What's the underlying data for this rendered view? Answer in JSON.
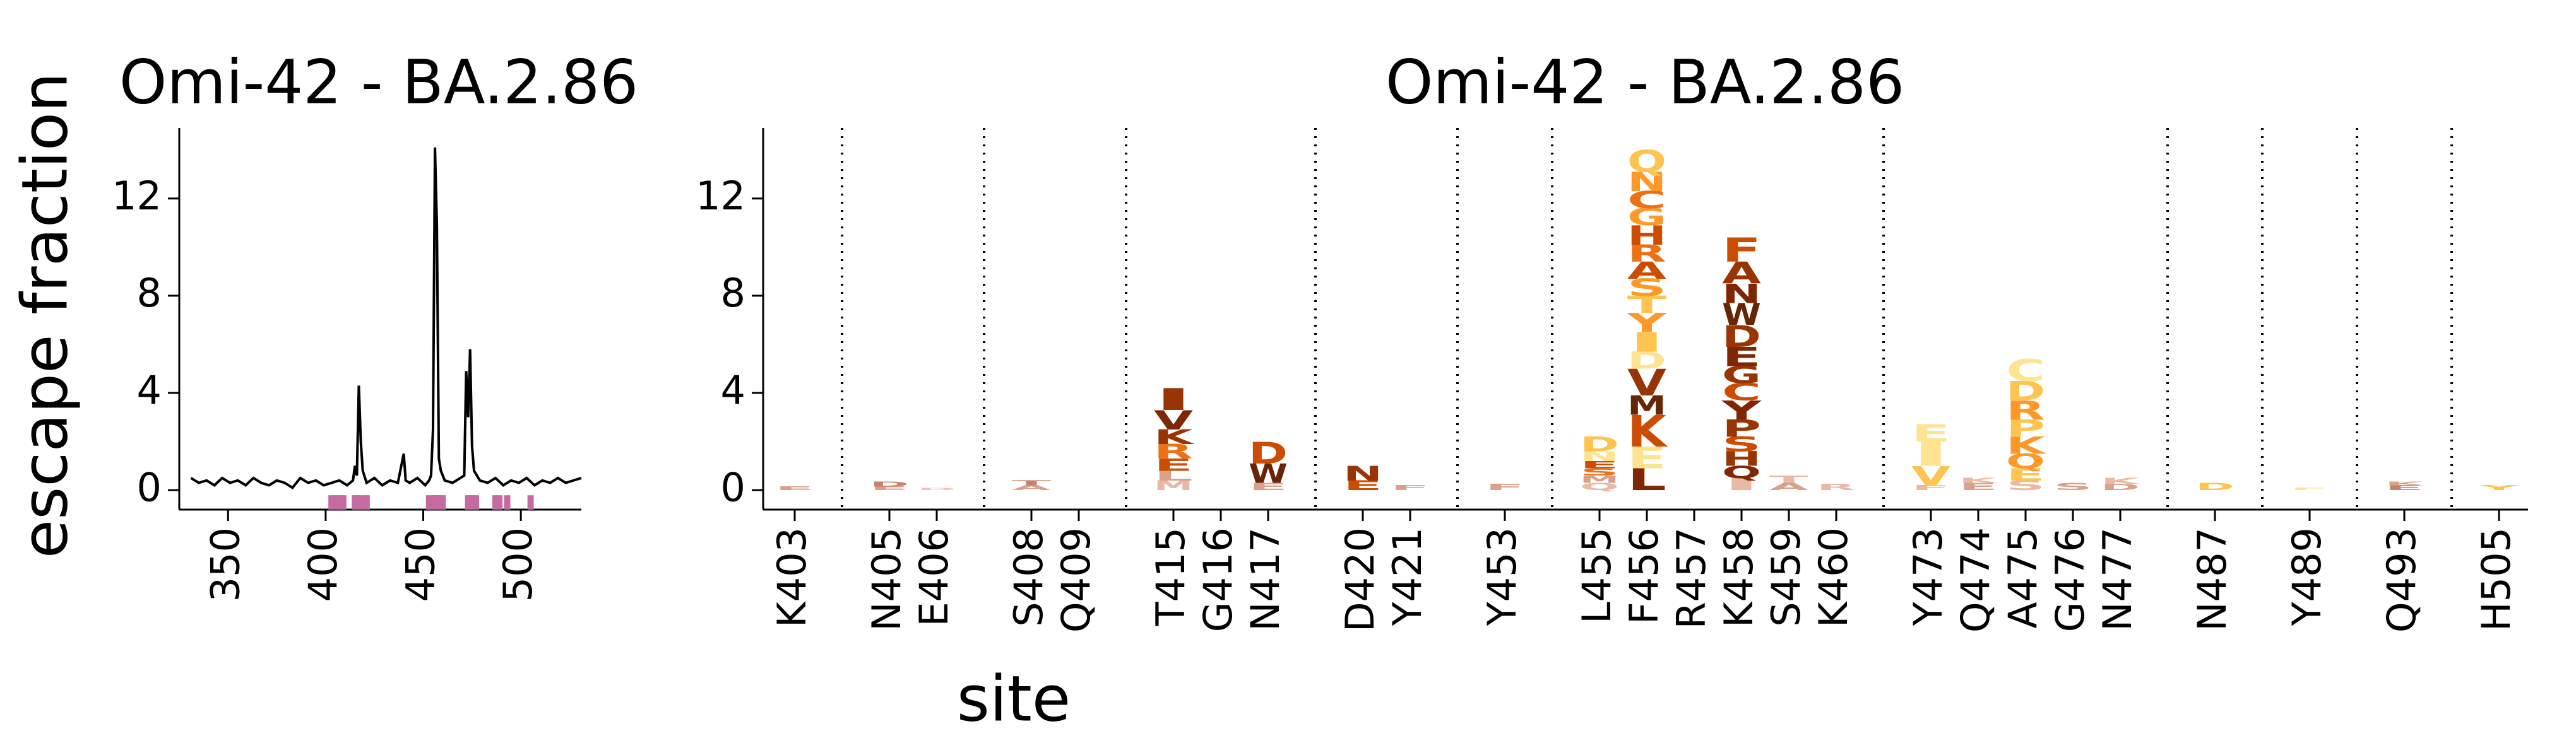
{
  "chart_data": [
    {
      "type": "line",
      "title": "Omi-42 - BA.2.86",
      "ylabel": "escape fraction",
      "xlim": [
        325,
        531
      ],
      "ylim": [
        -0.8,
        14.9
      ],
      "xticks": [
        350,
        400,
        450,
        500
      ],
      "yticks": [
        0,
        4,
        8,
        12
      ],
      "x": [
        331,
        335,
        339,
        343,
        347,
        351,
        355,
        359,
        363,
        367,
        371,
        375,
        379,
        383,
        387,
        391,
        395,
        399,
        403,
        407,
        411,
        414,
        415,
        416,
        417,
        418,
        419,
        421,
        425,
        429,
        433,
        437,
        440,
        441,
        443,
        447,
        451,
        453,
        454,
        455,
        456,
        457,
        458,
        459,
        461,
        465,
        469,
        471,
        472,
        473,
        474,
        475,
        476,
        479,
        483,
        487,
        491,
        495,
        499,
        503,
        507,
        511,
        515,
        519,
        523,
        527,
        531
      ],
      "series": [
        {
          "color": "#000000",
          "values": [
            0.5,
            0.3,
            0.4,
            0.2,
            0.5,
            0.3,
            0.4,
            0.2,
            0.5,
            0.3,
            0.2,
            0.4,
            0.3,
            0.1,
            0.5,
            0.3,
            0.4,
            0.2,
            0.3,
            0.4,
            0.2,
            0.4,
            1.0,
            0.6,
            4.3,
            2.0,
            0.8,
            0.3,
            0.5,
            0.2,
            0.4,
            0.3,
            1.5,
            0.4,
            0.3,
            0.5,
            0.2,
            0.4,
            0.6,
            2.5,
            14.1,
            10.8,
            1.3,
            0.8,
            0.4,
            0.3,
            0.5,
            0.6,
            4.9,
            3.0,
            5.8,
            1.8,
            0.8,
            0.4,
            0.3,
            0.5,
            0.2,
            0.4,
            0.3,
            0.5,
            0.2,
            0.4,
            0.3,
            0.5,
            0.3,
            0.4,
            0.5
          ]
        }
      ],
      "highlight_color": "#c46ba1",
      "highlight_sites": [
        403,
        405,
        406,
        408,
        409,
        415,
        416,
        417,
        420,
        421,
        453,
        455,
        456,
        457,
        458,
        459,
        460,
        473,
        474,
        475,
        476,
        477,
        487,
        489,
        493,
        505
      ]
    },
    {
      "type": "logo",
      "title": "Omi-42 - BA.2.86",
      "xlabel": "site",
      "ylim": [
        -0.8,
        14.9
      ],
      "yticks": [
        0,
        4,
        8,
        12
      ],
      "groups": [
        [
          {
            "label": "K403",
            "letters": [
              {
                "letter": "E",
                "value": 0.15,
                "color": "#d9a08a"
              }
            ]
          }
        ],
        [
          {
            "label": "N405",
            "letters": [
              {
                "letter": "E",
                "value": 0.15,
                "color": "#d9a08a"
              },
              {
                "letter": "D",
                "value": 0.2,
                "color": "#c9826a"
              }
            ]
          },
          {
            "label": "E406",
            "letters": [
              {
                "letter": "D",
                "value": 0.08,
                "color": "#e8c4b4"
              }
            ]
          }
        ],
        [
          {
            "label": "S408",
            "letters": [
              {
                "letter": "A",
                "value": 0.2,
                "color": "#d9a08a"
              },
              {
                "letter": "T",
                "value": 0.2,
                "color": "#c9826a"
              }
            ]
          },
          {
            "label": "Q409",
            "letters": []
          }
        ],
        [
          {
            "label": "T415",
            "letters": [
              {
                "letter": "M",
                "value": 0.4,
                "color": "#e9b9a6"
              },
              {
                "letter": "L",
                "value": 0.4,
                "color": "#d9a08a"
              },
              {
                "letter": "E",
                "value": 0.5,
                "color": "#cc4c02"
              },
              {
                "letter": "R",
                "value": 0.6,
                "color": "#ec7014"
              },
              {
                "letter": "K",
                "value": 0.6,
                "color": "#993404"
              },
              {
                "letter": "V",
                "value": 0.8,
                "color": "#7f2704"
              },
              {
                "letter": "I",
                "value": 0.9,
                "color": "#993404"
              }
            ]
          },
          {
            "label": "G416",
            "letters": []
          },
          {
            "label": "N417",
            "letters": [
              {
                "letter": "E",
                "value": 0.3,
                "color": "#d9a08a"
              },
              {
                "letter": "W",
                "value": 0.8,
                "color": "#662506"
              },
              {
                "letter": "D",
                "value": 0.9,
                "color": "#cc4c02"
              }
            ]
          }
        ],
        [
          {
            "label": "D420",
            "letters": [
              {
                "letter": "E",
                "value": 0.4,
                "color": "#cc4c02"
              },
              {
                "letter": "N",
                "value": 0.6,
                "color": "#993404"
              }
            ]
          },
          {
            "label": "Y421",
            "letters": [
              {
                "letter": "F",
                "value": 0.2,
                "color": "#d9a08a"
              }
            ]
          }
        ],
        [
          {
            "label": "Y453",
            "letters": [
              {
                "letter": "F",
                "value": 0.25,
                "color": "#d9a08a"
              }
            ]
          }
        ],
        [
          {
            "label": "L455",
            "letters": [
              {
                "letter": "Q",
                "value": 0.3,
                "color": "#e9b9a6"
              },
              {
                "letter": "M",
                "value": 0.3,
                "color": "#d9a08a"
              },
              {
                "letter": "S",
                "value": 0.3,
                "color": "#ec7014"
              },
              {
                "letter": "E",
                "value": 0.3,
                "color": "#cc4c02"
              },
              {
                "letter": "N",
                "value": 0.4,
                "color": "#fee391"
              },
              {
                "letter": "D",
                "value": 0.6,
                "color": "#fec44f"
              }
            ]
          },
          {
            "label": "F456",
            "letters": [
              {
                "letter": "L",
                "value": 0.9,
                "color": "#7f2704"
              },
              {
                "letter": "E",
                "value": 0.9,
                "color": "#fee391"
              },
              {
                "letter": "K",
                "value": 1.3,
                "color": "#cc4c02"
              },
              {
                "letter": "M",
                "value": 0.8,
                "color": "#662506"
              },
              {
                "letter": "V",
                "value": 1.1,
                "color": "#993404"
              },
              {
                "letter": "D",
                "value": 0.7,
                "color": "#fee391"
              },
              {
                "letter": "I",
                "value": 0.8,
                "color": "#fec44f"
              },
              {
                "letter": "Y",
                "value": 0.8,
                "color": "#fe9929"
              },
              {
                "letter": "T",
                "value": 0.7,
                "color": "#fec44f"
              },
              {
                "letter": "S",
                "value": 0.7,
                "color": "#fe9929"
              },
              {
                "letter": "A",
                "value": 0.7,
                "color": "#cc4c02"
              },
              {
                "letter": "R",
                "value": 0.7,
                "color": "#ec7014"
              },
              {
                "letter": "H",
                "value": 0.8,
                "color": "#cc4c02"
              },
              {
                "letter": "G",
                "value": 0.7,
                "color": "#fe9929"
              },
              {
                "letter": "C",
                "value": 0.7,
                "color": "#ec7014"
              },
              {
                "letter": "N",
                "value": 0.8,
                "color": "#fe9929"
              },
              {
                "letter": "Q",
                "value": 0.9,
                "color": "#fec44f"
              }
            ]
          },
          {
            "label": "R457",
            "letters": []
          },
          {
            "label": "K458",
            "letters": [
              {
                "letter": "I",
                "value": 0.5,
                "color": "#e9b9a6"
              },
              {
                "letter": "Q",
                "value": 0.5,
                "color": "#7f2704"
              },
              {
                "letter": "H",
                "value": 0.6,
                "color": "#993404"
              },
              {
                "letter": "S",
                "value": 0.6,
                "color": "#cc4c02"
              },
              {
                "letter": "P",
                "value": 0.7,
                "color": "#993404"
              },
              {
                "letter": "Y",
                "value": 0.8,
                "color": "#7f2704"
              },
              {
                "letter": "C",
                "value": 0.7,
                "color": "#cc4c02"
              },
              {
                "letter": "G",
                "value": 0.7,
                "color": "#993404"
              },
              {
                "letter": "E",
                "value": 0.8,
                "color": "#7f2704"
              },
              {
                "letter": "D",
                "value": 0.9,
                "color": "#993404"
              },
              {
                "letter": "W",
                "value": 0.9,
                "color": "#662506"
              },
              {
                "letter": "N",
                "value": 0.8,
                "color": "#7f2704"
              },
              {
                "letter": "A",
                "value": 0.9,
                "color": "#993404"
              },
              {
                "letter": "F",
                "value": 1.0,
                "color": "#cc4c02"
              }
            ]
          },
          {
            "label": "S459",
            "letters": [
              {
                "letter": "A",
                "value": 0.3,
                "color": "#d9a08a"
              },
              {
                "letter": "T",
                "value": 0.3,
                "color": "#e9b9a6"
              }
            ]
          },
          {
            "label": "K460",
            "letters": [
              {
                "letter": "R",
                "value": 0.25,
                "color": "#e9b9a6"
              }
            ]
          }
        ],
        [
          {
            "label": "Y473",
            "letters": [
              {
                "letter": "F",
                "value": 0.2,
                "color": "#e9b9a6"
              },
              {
                "letter": "V",
                "value": 0.8,
                "color": "#fec44f"
              },
              {
                "letter": "I",
                "value": 1.0,
                "color": "#fee391"
              },
              {
                "letter": "E",
                "value": 0.7,
                "color": "#fee391"
              }
            ]
          },
          {
            "label": "Q474",
            "letters": [
              {
                "letter": "E",
                "value": 0.3,
                "color": "#d9a08a"
              },
              {
                "letter": "K",
                "value": 0.2,
                "color": "#e9b9a6"
              }
            ]
          },
          {
            "label": "A475",
            "letters": [
              {
                "letter": "S",
                "value": 0.4,
                "color": "#e9b9a6"
              },
              {
                "letter": "E",
                "value": 0.5,
                "color": "#fec44f"
              },
              {
                "letter": "Q",
                "value": 0.6,
                "color": "#fe9929"
              },
              {
                "letter": "K",
                "value": 0.7,
                "color": "#fe9929"
              },
              {
                "letter": "P",
                "value": 0.7,
                "color": "#fec44f"
              },
              {
                "letter": "R",
                "value": 0.8,
                "color": "#fe9929"
              },
              {
                "letter": "D",
                "value": 0.8,
                "color": "#fec44f"
              },
              {
                "letter": "C",
                "value": 0.9,
                "color": "#fee391"
              }
            ]
          },
          {
            "label": "G476",
            "letters": [
              {
                "letter": "S",
                "value": 0.3,
                "color": "#d9a08a"
              }
            ]
          },
          {
            "label": "N477",
            "letters": [
              {
                "letter": "D",
                "value": 0.25,
                "color": "#d9a08a"
              },
              {
                "letter": "K",
                "value": 0.25,
                "color": "#e9b9a6"
              }
            ]
          }
        ],
        [
          {
            "label": "N487",
            "letters": [
              {
                "letter": "D",
                "value": 0.3,
                "color": "#fec44f"
              }
            ]
          }
        ],
        [
          {
            "label": "Y489",
            "letters": [
              {
                "letter": "F",
                "value": 0.1,
                "color": "#fee391"
              }
            ]
          }
        ],
        [
          {
            "label": "Q493",
            "letters": [
              {
                "letter": "E",
                "value": 0.2,
                "color": "#c9826a"
              },
              {
                "letter": "K",
                "value": 0.15,
                "color": "#d9a08a"
              }
            ]
          }
        ],
        [
          {
            "label": "H505",
            "letters": [
              {
                "letter": "Y",
                "value": 0.2,
                "color": "#fec44f"
              }
            ]
          }
        ]
      ]
    }
  ]
}
